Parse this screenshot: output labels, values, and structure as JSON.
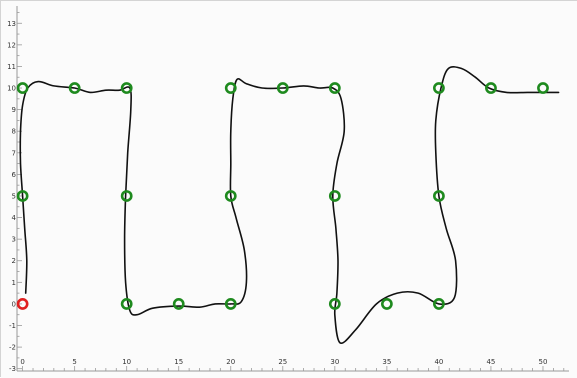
{
  "chart_data": {
    "type": "scatter",
    "title": "",
    "xlabel": "",
    "ylabel": "",
    "xlim": [
      -1.5,
      52.5
    ],
    "ylim": [
      -3.2,
      13.8
    ],
    "x_ticks": [
      "0",
      "5",
      "10",
      "15",
      "20",
      "25",
      "30",
      "35",
      "40",
      "45",
      "50"
    ],
    "y_ticks": [
      "-3",
      "-2",
      "-1",
      "0",
      "1",
      "2",
      "3",
      "4",
      "5",
      "6",
      "7",
      "8",
      "9",
      "10",
      "11",
      "12",
      "13"
    ],
    "grid": false,
    "legend": "none",
    "colors": {
      "waypoint": "#1e8a1e",
      "start": "#e02020",
      "path": "#111111",
      "axis": "#9a9a9a",
      "background": "#fbfbfb"
    },
    "waypoints": [
      {
        "x": 0,
        "y": 0,
        "kind": "start"
      },
      {
        "x": 0,
        "y": 5
      },
      {
        "x": 0,
        "y": 10
      },
      {
        "x": 5,
        "y": 10
      },
      {
        "x": 10,
        "y": 10
      },
      {
        "x": 10,
        "y": 5
      },
      {
        "x": 10,
        "y": 0
      },
      {
        "x": 15,
        "y": 0
      },
      {
        "x": 20,
        "y": 0
      },
      {
        "x": 20,
        "y": 5
      },
      {
        "x": 20,
        "y": 10
      },
      {
        "x": 25,
        "y": 10
      },
      {
        "x": 30,
        "y": 10
      },
      {
        "x": 30,
        "y": 5
      },
      {
        "x": 30,
        "y": 0
      },
      {
        "x": 35,
        "y": 0
      },
      {
        "x": 40,
        "y": 0
      },
      {
        "x": 40,
        "y": 5
      },
      {
        "x": 40,
        "y": 10
      },
      {
        "x": 45,
        "y": 10
      },
      {
        "x": 50,
        "y": 10
      }
    ],
    "trajectory": [
      [
        0.3,
        0.5
      ],
      [
        0.4,
        2
      ],
      [
        0.2,
        3.5
      ],
      [
        0,
        5
      ],
      [
        -0.2,
        6.5
      ],
      [
        -0.2,
        8
      ],
      [
        0,
        9.2
      ],
      [
        0.5,
        10
      ],
      [
        1.5,
        10.3
      ],
      [
        3,
        10.1
      ],
      [
        5,
        10
      ],
      [
        6.5,
        9.8
      ],
      [
        8,
        9.9
      ],
      [
        9.3,
        9.9
      ],
      [
        10.3,
        10
      ],
      [
        10.4,
        9
      ],
      [
        10.1,
        7
      ],
      [
        9.9,
        5
      ],
      [
        9.8,
        3
      ],
      [
        9.9,
        1
      ],
      [
        10.3,
        -0.3
      ],
      [
        11,
        -0.5
      ],
      [
        12.5,
        -0.2
      ],
      [
        15,
        -0.1
      ],
      [
        17,
        -0.15
      ],
      [
        18.5,
        0
      ],
      [
        20,
        0
      ],
      [
        21,
        0.1
      ],
      [
        21.5,
        1
      ],
      [
        21.3,
        2.5
      ],
      [
        20.5,
        4
      ],
      [
        20,
        5
      ],
      [
        20,
        6.5
      ],
      [
        20,
        8
      ],
      [
        20.2,
        9.5
      ],
      [
        20.6,
        10.4
      ],
      [
        21.5,
        10.2
      ],
      [
        23,
        10
      ],
      [
        25,
        10
      ],
      [
        27,
        10.1
      ],
      [
        28.5,
        10
      ],
      [
        29.8,
        10
      ],
      [
        30.6,
        9.5
      ],
      [
        30.9,
        8
      ],
      [
        30.2,
        6.5
      ],
      [
        29.8,
        5
      ],
      [
        30.1,
        3.5
      ],
      [
        30.3,
        2
      ],
      [
        30.2,
        0.5
      ],
      [
        30,
        -0.5
      ],
      [
        30.5,
        -1.8
      ],
      [
        32,
        -1.2
      ],
      [
        34,
        0
      ],
      [
        36,
        0.5
      ],
      [
        38,
        0.5
      ],
      [
        40,
        0
      ],
      [
        41.5,
        0.3
      ],
      [
        41.6,
        2
      ],
      [
        40.7,
        3.5
      ],
      [
        40,
        5
      ],
      [
        39.7,
        7
      ],
      [
        39.7,
        8.5
      ],
      [
        40.2,
        10
      ],
      [
        40.9,
        10.9
      ],
      [
        42.2,
        10.9
      ],
      [
        43.5,
        10.5
      ],
      [
        44.8,
        10
      ],
      [
        46.5,
        9.8
      ],
      [
        48.5,
        9.8
      ],
      [
        50,
        9.8
      ],
      [
        51.5,
        9.8
      ]
    ]
  }
}
